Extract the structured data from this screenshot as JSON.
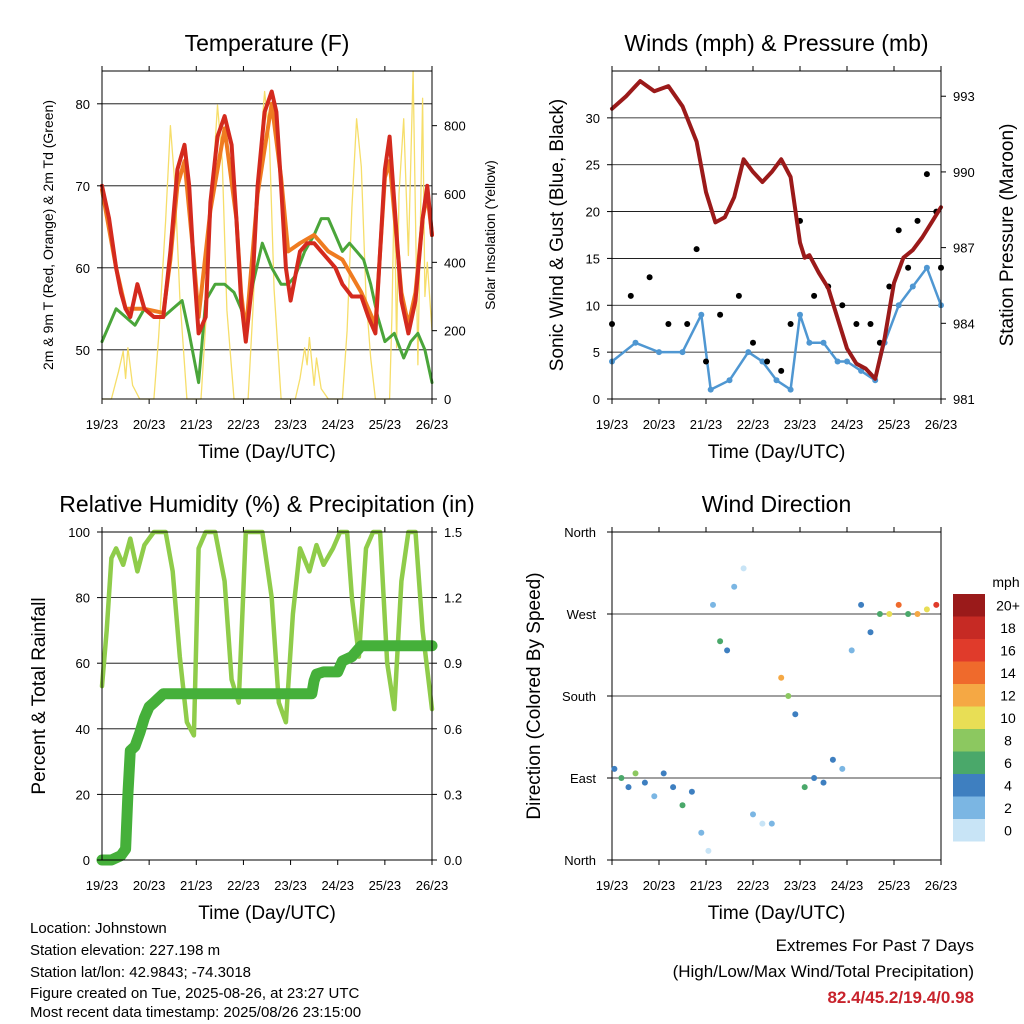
{
  "chart_data": [
    {
      "type": "line",
      "title": "Temperature (F)",
      "xlabel": "Time (Day/UTC)",
      "ylabel": "2m & 9m T (Red, Orange) & 2m Td (Green)",
      "y2label": "Solar Insolation (Yellow)",
      "x_ticks": [
        "19/23",
        "20/23",
        "21/23",
        "22/23",
        "23/23",
        "24/23",
        "25/23",
        "26/23"
      ],
      "ylim": [
        44,
        84
      ],
      "yticks": [
        50,
        60,
        70,
        80
      ],
      "y2lim": [
        0,
        960
      ],
      "y2ticks": [
        0,
        200,
        400,
        600,
        800
      ],
      "grid": true,
      "colors": {
        "t2m": "#d42a1e",
        "t9m": "#ef7b20",
        "td2m": "#4aa53a",
        "solar": "#f6de6a"
      },
      "series": [
        {
          "name": "2m T",
          "x": [
            0,
            0.15,
            0.3,
            0.4,
            0.5,
            0.6,
            0.75,
            0.9,
            1.0,
            1.1,
            1.2,
            1.3,
            1.45,
            1.6,
            1.75,
            1.85,
            1.95,
            2.05,
            2.2,
            2.3,
            2.45,
            2.6,
            2.75,
            2.85,
            2.95,
            3.05,
            3.2,
            3.3,
            3.45,
            3.6,
            3.7,
            3.8,
            3.9,
            4.0,
            4.1,
            4.2,
            4.35,
            4.5,
            4.65,
            4.8,
            4.95,
            5.1,
            5.3,
            5.5,
            5.65,
            5.8,
            5.9,
            6.0,
            6.1,
            6.2,
            6.35,
            6.5,
            6.65,
            6.8,
            6.9,
            7.0
          ],
          "values": [
            70,
            66,
            60,
            57,
            55,
            54,
            58,
            55,
            54.5,
            54,
            54,
            54,
            62,
            72,
            75,
            70,
            60,
            52,
            54,
            68,
            76,
            78.5,
            75,
            66,
            56,
            51,
            59,
            70,
            79,
            81.5,
            79,
            70,
            60,
            56,
            59,
            62,
            63,
            63,
            62,
            61,
            60,
            58,
            56.5,
            56.5,
            54,
            52,
            62,
            72,
            76,
            68,
            56,
            52,
            56,
            66,
            70,
            64
          ]
        },
        {
          "name": "9m T",
          "x": [
            0,
            0.3,
            0.5,
            0.9,
            1.3,
            1.45,
            1.6,
            1.75,
            1.95,
            2.05,
            2.3,
            2.6,
            2.85,
            2.95,
            3.05,
            3.3,
            3.6,
            3.8,
            3.95,
            4.2,
            4.5,
            4.8,
            5.1,
            5.5,
            5.8,
            6.0,
            6.1,
            6.35,
            6.5,
            6.65,
            6.8,
            6.9,
            7.0
          ],
          "values": [
            69.5,
            60,
            55,
            55,
            54.5,
            61,
            70,
            73,
            61,
            54,
            67,
            77,
            66,
            57,
            52,
            69,
            80,
            71,
            62,
            63,
            64,
            62,
            61,
            57,
            53,
            71,
            73,
            57,
            53,
            57,
            66,
            69,
            64
          ]
        },
        {
          "name": "2m Td",
          "x": [
            0,
            0.15,
            0.3,
            0.5,
            0.7,
            0.9,
            1.1,
            1.3,
            1.5,
            1.7,
            1.85,
            1.95,
            2.05,
            2.2,
            2.4,
            2.6,
            2.8,
            2.95,
            3.05,
            3.2,
            3.4,
            3.6,
            3.8,
            3.95,
            4.1,
            4.3,
            4.5,
            4.65,
            4.8,
            4.95,
            5.1,
            5.25,
            5.4,
            5.55,
            5.7,
            5.85,
            6.0,
            6.2,
            6.4,
            6.55,
            6.7,
            6.85,
            7.0
          ],
          "values": [
            51,
            53,
            55,
            54,
            53,
            55,
            54,
            54,
            55,
            56,
            52,
            49,
            46,
            56,
            58,
            58,
            57,
            55,
            53,
            58,
            63,
            60,
            58,
            58,
            59,
            62,
            64,
            66,
            66,
            64,
            62,
            63,
            62,
            61,
            58,
            54,
            51,
            52,
            49,
            51,
            52,
            50,
            46
          ]
        },
        {
          "name": "Solar Insolation",
          "axis": "y2",
          "x": [
            0,
            0.2,
            0.35,
            0.45,
            0.5,
            0.55,
            0.65,
            0.8,
            1.1,
            1.2,
            1.35,
            1.45,
            1.55,
            1.65,
            1.8,
            2.1,
            2.2,
            2.35,
            2.45,
            2.55,
            2.65,
            2.8,
            3.1,
            3.2,
            3.35,
            3.45,
            3.55,
            3.65,
            3.8,
            4.1,
            4.2,
            4.3,
            4.35,
            4.4,
            4.5,
            4.55,
            4.65,
            4.8,
            5.1,
            5.2,
            5.3,
            5.4,
            5.5,
            5.6,
            5.7,
            5.8,
            6.1,
            6.15,
            6.2,
            6.25,
            6.3,
            6.4,
            6.5,
            6.6,
            6.7,
            6.8,
            6.85,
            6.9,
            7.0
          ],
          "values": [
            0,
            0,
            80,
            140,
            60,
            150,
            40,
            0,
            0,
            180,
            520,
            800,
            620,
            300,
            0,
            0,
            220,
            640,
            860,
            700,
            260,
            0,
            0,
            260,
            720,
            900,
            760,
            320,
            0,
            0,
            60,
            150,
            100,
            180,
            40,
            120,
            30,
            0,
            0,
            200,
            560,
            820,
            680,
            300,
            120,
            0,
            0,
            240,
            620,
            150,
            600,
            820,
            420,
            960,
            100,
            880,
            300,
            400,
            200
          ]
        }
      ]
    },
    {
      "type": "scatter",
      "title": "Winds (mph) & Pressure (mb)",
      "xlabel": "Time (Day/UTC)",
      "ylabel": "Sonic Wind & Gust (Blue, Black)",
      "y2label": "Station Pressure (Maroon)",
      "x_ticks": [
        "19/23",
        "20/23",
        "21/23",
        "22/23",
        "23/23",
        "24/23",
        "25/23",
        "26/23"
      ],
      "ylim": [
        0,
        35
      ],
      "yticks": [
        0,
        5,
        10,
        15,
        20,
        25,
        30
      ],
      "y2lim": [
        981,
        994
      ],
      "y2ticks": [
        981,
        984,
        987,
        990,
        993
      ],
      "grid": true,
      "colors": {
        "wind": "#4f97d2",
        "gust": "#000000",
        "pressure": "#9b1a1a"
      },
      "series": [
        {
          "name": "Sonic Wind",
          "x": [
            0,
            0.5,
            1.0,
            1.5,
            1.9,
            2.1,
            2.5,
            2.9,
            3.2,
            3.5,
            3.8,
            4.0,
            4.2,
            4.5,
            4.8,
            5.0,
            5.3,
            5.6,
            5.8,
            6.1,
            6.4,
            6.7,
            7.0
          ],
          "values": [
            4,
            6,
            5,
            5,
            9,
            1,
            2,
            5,
            4,
            2,
            1,
            9,
            6,
            6,
            4,
            4,
            3,
            2,
            6,
            10,
            12,
            14,
            10
          ]
        },
        {
          "name": "Gust",
          "x": [
            0,
            0.4,
            0.8,
            1.2,
            1.6,
            1.8,
            2.0,
            2.3,
            2.7,
            3.0,
            3.3,
            3.6,
            3.8,
            4.0,
            4.3,
            4.6,
            4.9,
            5.2,
            5.5,
            5.7,
            5.9,
            6.1,
            6.3,
            6.5,
            6.7,
            6.9,
            7.0
          ],
          "values": [
            8,
            11,
            13,
            8,
            8,
            16,
            4,
            9,
            11,
            6,
            4,
            3,
            8,
            19,
            11,
            12,
            10,
            8,
            8,
            6,
            12,
            18,
            14,
            19,
            24,
            20,
            14
          ]
        },
        {
          "name": "Station Pressure",
          "axis": "y2",
          "x": [
            0,
            0.3,
            0.6,
            0.9,
            1.2,
            1.5,
            1.8,
            2.0,
            2.2,
            2.4,
            2.6,
            2.8,
            3.0,
            3.2,
            3.4,
            3.6,
            3.8,
            4.0,
            4.1,
            4.2,
            4.4,
            4.6,
            4.8,
            5.0,
            5.2,
            5.4,
            5.6,
            5.8,
            6.0,
            6.2,
            6.4,
            6.6,
            6.8,
            7.0
          ],
          "values": [
            992.5,
            993,
            993.6,
            993.2,
            993.4,
            992.6,
            991.2,
            989.2,
            988,
            988.2,
            989,
            990.5,
            990,
            989.6,
            990,
            990.5,
            989.8,
            987.2,
            986.6,
            986.7,
            986,
            985.4,
            984.2,
            983,
            982.4,
            982.2,
            981.8,
            983.4,
            985.6,
            986.6,
            986.9,
            987.4,
            988,
            988.6
          ]
        }
      ]
    },
    {
      "type": "line",
      "title": "Relative Humidity (%) & Precipitation (in)",
      "xlabel": "Time (Day/UTC)",
      "ylabel": "Percent & Total Rainfall",
      "x_ticks": [
        "19/23",
        "20/23",
        "21/23",
        "22/23",
        "23/23",
        "24/23",
        "25/23",
        "26/23"
      ],
      "ylim": [
        0,
        100
      ],
      "yticks": [
        0,
        20,
        40,
        60,
        80,
        100
      ],
      "y2lim": [
        0,
        1.5
      ],
      "y2ticks": [
        0.0,
        0.3,
        0.6,
        0.9,
        1.2,
        1.5
      ],
      "grid": true,
      "colors": {
        "rh": "#8fcc4a",
        "precip": "#45b03a"
      },
      "series": [
        {
          "name": "Relative Humidity",
          "x": [
            0,
            0.1,
            0.2,
            0.3,
            0.45,
            0.6,
            0.75,
            0.9,
            1.0,
            1.1,
            1.2,
            1.35,
            1.5,
            1.65,
            1.8,
            1.95,
            2.05,
            2.2,
            2.4,
            2.6,
            2.75,
            2.9,
            3.05,
            3.2,
            3.4,
            3.6,
            3.75,
            3.9,
            4.05,
            4.2,
            4.4,
            4.55,
            4.7,
            4.9,
            5.05,
            5.2,
            5.3,
            5.45,
            5.6,
            5.75,
            5.9,
            6.05,
            6.2,
            6.35,
            6.5,
            6.65,
            6.8,
            7.0
          ],
          "values": [
            53,
            70,
            92,
            95,
            90,
            98,
            88,
            96,
            98,
            100,
            100,
            100,
            88,
            62,
            42,
            38,
            95,
            100,
            100,
            85,
            55,
            48,
            100,
            100,
            100,
            80,
            48,
            42,
            75,
            95,
            88,
            96,
            90,
            95,
            100,
            100,
            80,
            62,
            95,
            100,
            100,
            60,
            46,
            85,
            100,
            100,
            70,
            46
          ]
        },
        {
          "name": "Total Rainfall",
          "axis": "y2",
          "x": [
            0,
            0.2,
            0.4,
            0.5,
            0.55,
            0.6,
            0.7,
            0.8,
            0.9,
            1.0,
            1.1,
            1.2,
            1.3,
            1.5,
            2.0,
            2.5,
            3.0,
            3.5,
            4.0,
            4.45,
            4.5,
            4.55,
            4.7,
            5.0,
            5.1,
            5.3,
            5.5,
            6.0,
            6.5,
            7.0
          ],
          "values": [
            0,
            0,
            0.02,
            0.05,
            0.3,
            0.5,
            0.52,
            0.58,
            0.65,
            0.7,
            0.72,
            0.74,
            0.76,
            0.76,
            0.76,
            0.76,
            0.76,
            0.76,
            0.76,
            0.76,
            0.82,
            0.85,
            0.86,
            0.86,
            0.91,
            0.93,
            0.98,
            0.98,
            0.98,
            0.98
          ]
        }
      ]
    },
    {
      "type": "scatter",
      "title": "Wind Direction",
      "xlabel": "Time (Day/UTC)",
      "ylabel": "Direction (Colored By Speed)",
      "x_ticks": [
        "19/23",
        "20/23",
        "21/23",
        "22/23",
        "23/23",
        "24/23",
        "25/23",
        "26/23"
      ],
      "y_ticks": [
        "North",
        "East",
        "South",
        "West",
        "North"
      ],
      "ylim": [
        0,
        360
      ],
      "grid": true,
      "legend": {
        "title": "mph",
        "position": "right",
        "labels": [
          "20+",
          "18",
          "16",
          "14",
          "12",
          "10",
          "8",
          "6",
          "4",
          "2",
          "0"
        ],
        "colors": [
          "#9a1a1a",
          "#c62a24",
          "#e03b2b",
          "#ef6a2c",
          "#f5a844",
          "#e8de55",
          "#8cc860",
          "#4aa86a",
          "#3e7fc0",
          "#7bb6e3",
          "#c8e4f6"
        ]
      },
      "series": [
        {
          "name": "Direction",
          "x": [
            0.05,
            0.2,
            0.35,
            0.5,
            0.7,
            0.9,
            1.1,
            1.3,
            1.5,
            1.7,
            1.9,
            2.05,
            2.15,
            2.3,
            2.45,
            2.6,
            2.8,
            3.0,
            3.2,
            3.4,
            3.6,
            3.75,
            3.9,
            4.1,
            4.3,
            4.5,
            4.7,
            4.9,
            5.1,
            5.3,
            5.5,
            5.7,
            5.9,
            6.1,
            6.3,
            6.5,
            6.7,
            6.9
          ],
          "values": [
            100,
            90,
            80,
            95,
            85,
            70,
            95,
            80,
            60,
            75,
            30,
            10,
            280,
            240,
            230,
            300,
            320,
            50,
            40,
            40,
            200,
            180,
            160,
            80,
            90,
            85,
            110,
            100,
            230,
            280,
            250,
            270,
            270,
            280,
            270,
            270,
            275,
            280
          ],
          "speeds": [
            4,
            6,
            4,
            8,
            4,
            2,
            4,
            4,
            6,
            4,
            2,
            0,
            2,
            6,
            4,
            2,
            0,
            2,
            0,
            2,
            12,
            8,
            4,
            6,
            4,
            4,
            4,
            2,
            2,
            4,
            4,
            6,
            10,
            14,
            6,
            12,
            10,
            16
          ]
        }
      ]
    }
  ],
  "info": {
    "location": "Location: Johnstown",
    "elevation": "Station elevation: 227.198 m",
    "latlon": "Station lat/lon: 42.9843; -74.3018",
    "created": "Figure created on Tue, 2025-08-26, at 23:27 UTC",
    "recent": "Most recent data timestamp: 2025/08/26 23:15:00"
  },
  "extremes": {
    "heading": "Extremes For Past 7 Days",
    "subheading": "(High/Low/Max Wind/Total Precipitation)",
    "values": "82.4/45.2/19.4/0.98"
  }
}
